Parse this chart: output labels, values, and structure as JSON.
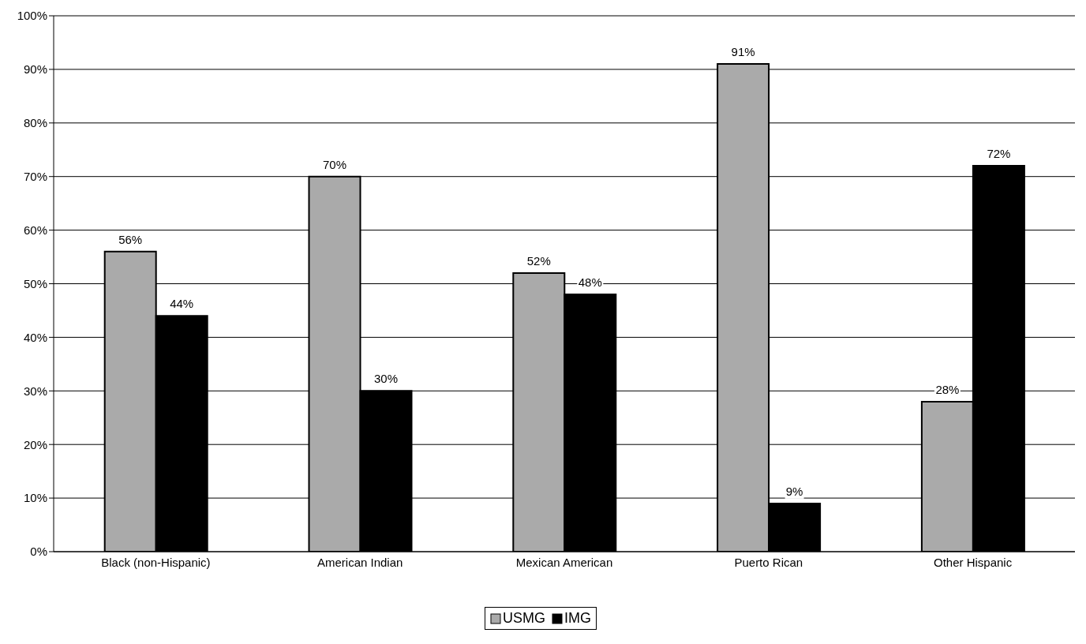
{
  "chart_data": {
    "type": "bar",
    "categories": [
      "Black (non-Hispanic)",
      "American Indian",
      "Mexican American",
      "Puerto Rican",
      "Other Hispanic"
    ],
    "series": [
      {
        "name": "USMG",
        "color": "#aaaaaa",
        "values": [
          56,
          70,
          52,
          91,
          28
        ],
        "value_labels": [
          "56%",
          "70%",
          "52%",
          "91%",
          "28%"
        ]
      },
      {
        "name": "IMG",
        "color": "#000000",
        "values": [
          44,
          30,
          48,
          9,
          72
        ],
        "value_labels": [
          "44%",
          "30%",
          "48%",
          "9%",
          "72%"
        ]
      }
    ],
    "ylim": [
      0,
      100
    ],
    "yticks": [
      {
        "value": 0,
        "label": "0%"
      },
      {
        "value": 10,
        "label": "10%"
      },
      {
        "value": 20,
        "label": "20%"
      },
      {
        "value": 30,
        "label": "30%"
      },
      {
        "value": 40,
        "label": "40%"
      },
      {
        "value": 50,
        "label": "50%"
      },
      {
        "value": 60,
        "label": "60%"
      },
      {
        "value": 70,
        "label": "70%"
      },
      {
        "value": 80,
        "label": "80%"
      },
      {
        "value": 90,
        "label": "90%"
      },
      {
        "value": 100,
        "label": "100%"
      }
    ],
    "grid": "y",
    "legend": "bottom"
  }
}
